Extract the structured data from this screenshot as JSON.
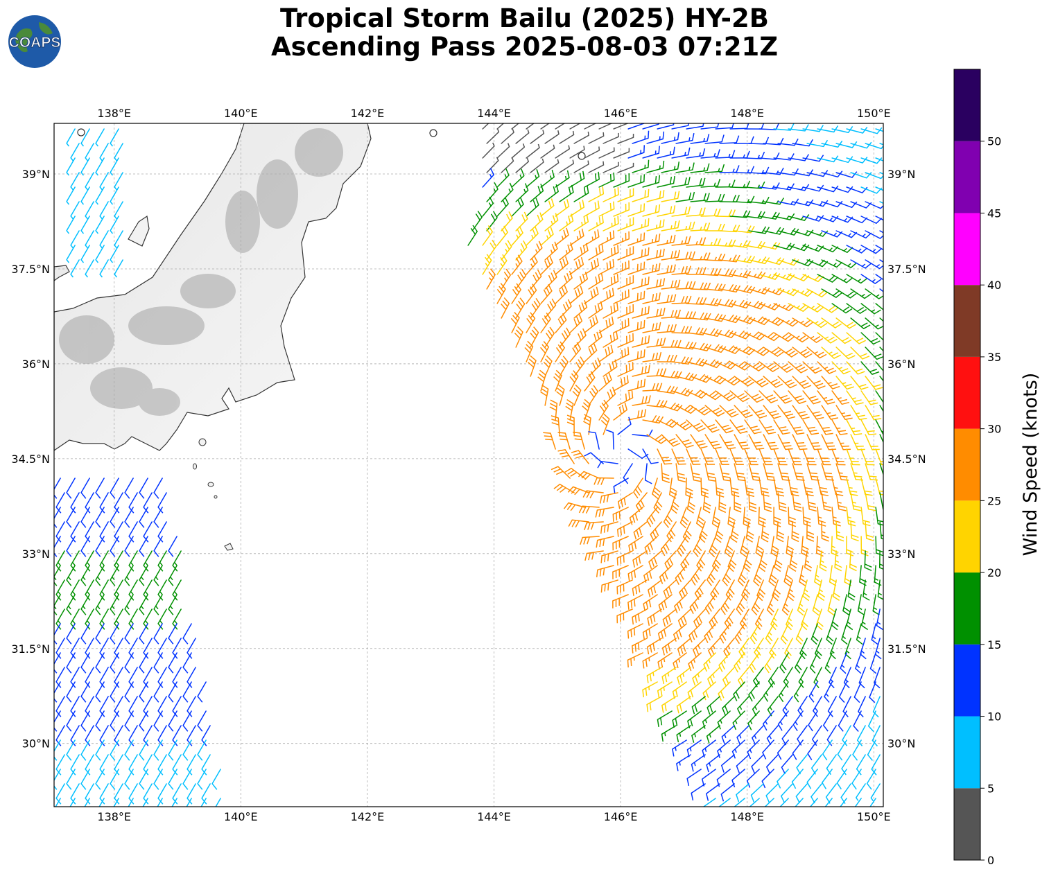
{
  "header": {
    "title_line1": "Tropical Storm Bailu (2025) HY-2B",
    "title_line2": "Ascending Pass 2025-08-03 07:21Z"
  },
  "logo": {
    "text": "COAPS",
    "icon": "globe-icon"
  },
  "map": {
    "lon_ticks": [
      "138°E",
      "140°E",
      "142°E",
      "144°E",
      "146°E",
      "148°E",
      "150°E"
    ],
    "lat_ticks": [
      "39°N",
      "37.5°N",
      "36°N",
      "34.5°N",
      "33°N",
      "31.5°N",
      "30°N"
    ],
    "extent": {
      "lon_min": 137.05,
      "lon_max": 150.15,
      "lat_min": 29.0,
      "lat_max": 39.8
    },
    "gridlines": true,
    "land_color": "#f2f2f2",
    "coast_color": "#333333"
  },
  "colorbar": {
    "label": "Wind Speed (knots)",
    "tick_labels": [
      "0",
      "5",
      "10",
      "15",
      "20",
      "25",
      "30",
      "35",
      "40",
      "45",
      "50"
    ],
    "bins": [
      {
        "min": 0,
        "max": 5,
        "color": "#555555"
      },
      {
        "min": 5,
        "max": 10,
        "color": "#00bfff"
      },
      {
        "min": 10,
        "max": 15,
        "color": "#0033ff"
      },
      {
        "min": 15,
        "max": 20,
        "color": "#009000"
      },
      {
        "min": 20,
        "max": 25,
        "color": "#ffd400"
      },
      {
        "min": 25,
        "max": 30,
        "color": "#ff8c00"
      },
      {
        "min": 30,
        "max": 35,
        "color": "#ff1010"
      },
      {
        "min": 35,
        "max": 40,
        "color": "#7f3a26"
      },
      {
        "min": 40,
        "max": 45,
        "color": "#ff00ff"
      },
      {
        "min": 45,
        "max": 50,
        "color": "#8000b0"
      },
      {
        "min": 50,
        "max": 55,
        "color": "#2a0060"
      }
    ]
  },
  "storm": {
    "center_lon": 146.05,
    "center_lat": 34.6,
    "wind_field": "cyclonic wind barbs, peak near 25-30 kt west of center"
  }
}
